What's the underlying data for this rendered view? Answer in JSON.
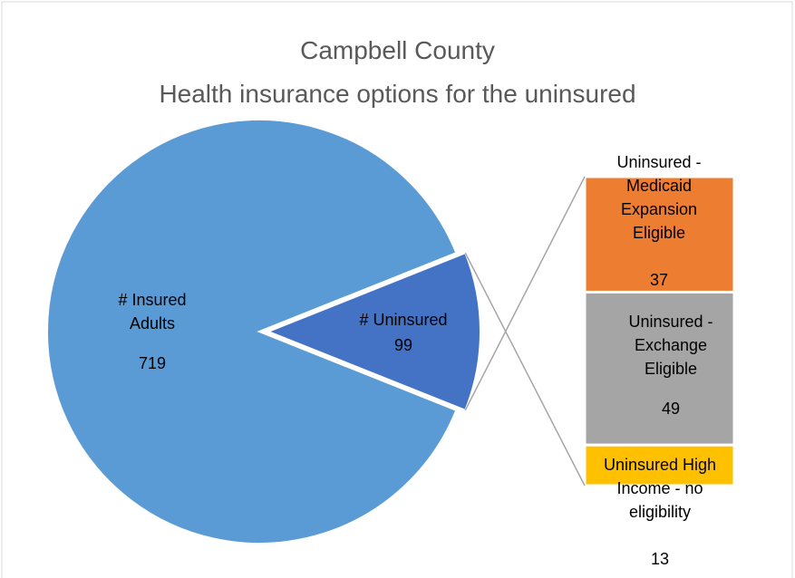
{
  "chart_data": {
    "type": "pie",
    "title": "Campbell County",
    "subtitle": "Health insurance options for the uninsured",
    "categories": [
      "# Insured Adults",
      "# Uninsured"
    ],
    "values": [
      719,
      99
    ],
    "colors": [
      "#5b9bd5",
      "#4472c4"
    ],
    "breakdown": {
      "type": "bar",
      "categories": [
        "Uninsured - Medicaid Expansion Eligible",
        "Uninsured - Exchange Eligible",
        "Uninsured High Income - no eligibility"
      ],
      "values": [
        37,
        49,
        13
      ],
      "colors": [
        "#ed7d31",
        "#a5a5a5",
        "#ffc000"
      ]
    }
  }
}
